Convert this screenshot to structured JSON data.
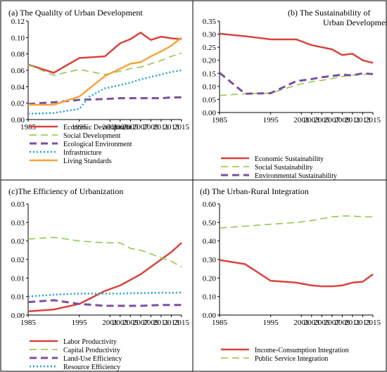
{
  "chart_data": [
    {
      "type": "line",
      "title": "(a) The Qualilty of Urban Development",
      "x_ticks": [
        "1985",
        "1995",
        "2005",
        "2015"
      ],
      "x_ticks_rotated": [
        "2001",
        "2003",
        "2007",
        "2009",
        "2011",
        "2013"
      ],
      "y_ticks": [
        "0.00",
        "0.02",
        "0.04",
        "0.06",
        "0.08",
        "0.10",
        "0.12"
      ],
      "ylim": [
        0,
        0.12
      ],
      "xlim": [
        1985,
        2015
      ],
      "legend_position": "bottom",
      "series": [
        {
          "name": "Economic Development",
          "color": "#d9443c",
          "style": "solid",
          "x": [
            1985,
            1990,
            1995,
            2000,
            2003,
            2005,
            2007,
            2009,
            2011,
            2013,
            2015
          ],
          "y": [
            0.067,
            0.057,
            0.075,
            0.077,
            0.093,
            0.098,
            0.106,
            0.097,
            0.101,
            0.099,
            0.098
          ]
        },
        {
          "name": "Social Development",
          "color": "#8cc63f",
          "style": "dashed-outline",
          "x": [
            1985,
            1990,
            1995,
            2000,
            2003,
            2005,
            2007,
            2009,
            2011,
            2013,
            2015
          ],
          "y": [
            0.067,
            0.054,
            0.061,
            0.055,
            0.059,
            0.062,
            0.064,
            0.068,
            0.072,
            0.077,
            0.081
          ]
        },
        {
          "name": "Ecological Environment",
          "color": "#7d4f9e",
          "style": "dashed",
          "x": [
            1985,
            1990,
            1995,
            2000,
            2003,
            2005,
            2007,
            2009,
            2011,
            2013,
            2015
          ],
          "y": [
            0.019,
            0.021,
            0.024,
            0.025,
            0.026,
            0.026,
            0.026,
            0.026,
            0.026,
            0.027,
            0.027
          ]
        },
        {
          "name": "Infrastructure",
          "color": "#1fa4c9",
          "style": "dotted",
          "x": [
            1985,
            1990,
            1995,
            1997,
            2000,
            2003,
            2005,
            2007,
            2009,
            2011,
            2013,
            2015
          ],
          "y": [
            0.007,
            0.008,
            0.013,
            0.028,
            0.038,
            0.042,
            0.045,
            0.049,
            0.052,
            0.055,
            0.058,
            0.06
          ]
        },
        {
          "name": "Living Standards",
          "color": "#f7a43b",
          "style": "solid",
          "x": [
            1985,
            1990,
            1995,
            2000,
            2003,
            2005,
            2007,
            2009,
            2011,
            2013,
            2015
          ],
          "y": [
            0.018,
            0.018,
            0.028,
            0.053,
            0.062,
            0.068,
            0.07,
            0.077,
            0.083,
            0.09,
            0.1
          ]
        }
      ]
    },
    {
      "type": "line",
      "title": "(b) The Sustainability of  Urban Development",
      "x_ticks": [
        "1985",
        "1995",
        "2005",
        "2015"
      ],
      "x_ticks_rotated": [
        "2001",
        "2003",
        "2007",
        "2009",
        "2011",
        "2013"
      ],
      "y_ticks": [
        "0.00",
        "0.05",
        "0.10",
        "0.15",
        "0.20",
        "0.25",
        "0.30",
        "0.35"
      ],
      "ylim": [
        0,
        0.35
      ],
      "xlim": [
        1985,
        2015
      ],
      "legend_position": "bottom",
      "series": [
        {
          "name": "Economic Sustainability",
          "color": "#d9443c",
          "style": "solid",
          "x": [
            1985,
            1990,
            1995,
            2000,
            2003,
            2005,
            2007,
            2009,
            2011,
            2013,
            2015
          ],
          "y": [
            0.302,
            0.292,
            0.28,
            0.28,
            0.258,
            0.25,
            0.242,
            0.22,
            0.225,
            0.2,
            0.19
          ]
        },
        {
          "name": "Social Sustainability",
          "color": "#8cc63f",
          "style": "dashed-outline",
          "x": [
            1985,
            1990,
            1995,
            2000,
            2003,
            2005,
            2007,
            2009,
            2011,
            2013,
            2015
          ],
          "y": [
            0.065,
            0.072,
            0.074,
            0.105,
            0.118,
            0.123,
            0.13,
            0.138,
            0.143,
            0.146,
            0.148
          ]
        },
        {
          "name": "Environmental Sustainability",
          "color": "#7d4f9e",
          "style": "dashed",
          "x": [
            1985,
            1990,
            1995,
            2000,
            2003,
            2005,
            2007,
            2009,
            2011,
            2013,
            2015
          ],
          "y": [
            0.152,
            0.072,
            0.074,
            0.12,
            0.128,
            0.135,
            0.14,
            0.145,
            0.142,
            0.15,
            0.147
          ]
        }
      ]
    },
    {
      "type": "line",
      "title": "(c)The  Efficiency of Urbanization",
      "x_ticks": [
        "1985",
        "1995",
        "2005",
        "2015"
      ],
      "x_ticks_rotated": [
        "2001",
        "2003",
        "2007",
        "2009",
        "2011",
        "2013"
      ],
      "y_ticks": [
        "0.00",
        "0.01",
        "0.01",
        "0.02",
        "0.02",
        "0.03",
        "0.03"
      ],
      "ylim": [
        0,
        0.03
      ],
      "xlim": [
        1985,
        2015
      ],
      "legend_position": "bottom",
      "series": [
        {
          "name": "Labor Productivity",
          "color": "#d9443c",
          "style": "solid",
          "x": [
            1985,
            1990,
            1995,
            2000,
            2003,
            2005,
            2007,
            2009,
            2011,
            2013,
            2015
          ],
          "y": [
            0.001,
            0.0015,
            0.003,
            0.0065,
            0.008,
            0.0095,
            0.011,
            0.013,
            0.015,
            0.017,
            0.0195
          ]
        },
        {
          "name": "Capital Productivity",
          "color": "#8cc63f",
          "style": "dashed-outline",
          "x": [
            1985,
            1990,
            1995,
            2000,
            2003,
            2005,
            2007,
            2009,
            2011,
            2013,
            2015
          ],
          "y": [
            0.0205,
            0.021,
            0.02,
            0.0195,
            0.0195,
            0.018,
            0.0175,
            0.0165,
            0.0155,
            0.0145,
            0.013
          ]
        },
        {
          "name": "Land-Use Efficiency",
          "color": "#7d4f9e",
          "style": "dashed",
          "x": [
            1985,
            1990,
            1995,
            2000,
            2003,
            2005,
            2007,
            2009,
            2011,
            2013,
            2015
          ],
          "y": [
            0.0035,
            0.004,
            0.003,
            0.0025,
            0.0025,
            0.0025,
            0.0025,
            0.0026,
            0.0027,
            0.0027,
            0.0027
          ]
        },
        {
          "name": "Resource Efficiency",
          "color": "#1fa4c9",
          "style": "dotted",
          "x": [
            1985,
            1990,
            1995,
            2000,
            2003,
            2005,
            2007,
            2009,
            2011,
            2013,
            2015
          ],
          "y": [
            0.005,
            0.0055,
            0.0058,
            0.0058,
            0.0058,
            0.0059,
            0.0059,
            0.006,
            0.006,
            0.006,
            0.0061
          ]
        }
      ]
    },
    {
      "type": "line",
      "title": "(d) The Urban-Rural Integration",
      "x_ticks": [
        "1985",
        "1995",
        "2005",
        "2015"
      ],
      "x_ticks_rotated": [
        "2001",
        "2003",
        "2007",
        "2009",
        "2011",
        "2013"
      ],
      "y_ticks": [
        "0.00",
        "0.10",
        "0.20",
        "0.30",
        "0.40",
        "0.50",
        "0.60"
      ],
      "ylim": [
        0,
        0.6
      ],
      "xlim": [
        1985,
        2015
      ],
      "legend_position": "bottom",
      "series": [
        {
          "name": "Income-Consumption Integration",
          "color": "#d9443c",
          "style": "solid",
          "x": [
            1985,
            1990,
            1995,
            2000,
            2003,
            2005,
            2007,
            2009,
            2011,
            2013,
            2015
          ],
          "y": [
            0.297,
            0.275,
            0.185,
            0.175,
            0.16,
            0.155,
            0.155,
            0.16,
            0.175,
            0.18,
            0.22
          ]
        },
        {
          "name": "Public Service Integration",
          "color": "#8cc63f",
          "style": "dashed-outline",
          "x": [
            1985,
            1990,
            1995,
            2000,
            2003,
            2005,
            2007,
            2009,
            2011,
            2013,
            2015
          ],
          "y": [
            0.47,
            0.48,
            0.49,
            0.5,
            0.51,
            0.52,
            0.53,
            0.535,
            0.535,
            0.53,
            0.53
          ]
        }
      ]
    }
  ]
}
